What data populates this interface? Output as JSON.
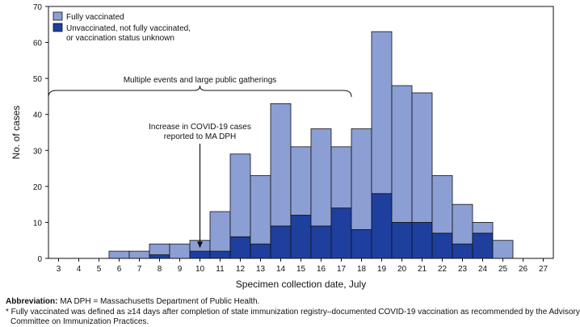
{
  "chart_data": {
    "type": "bar",
    "stacked": true,
    "xlabel": "Specimen collection date, July",
    "ylabel": "No. of cases",
    "categories": [
      "3",
      "4",
      "5",
      "6",
      "7",
      "8",
      "9",
      "10",
      "11",
      "12",
      "13",
      "14",
      "15",
      "16",
      "17",
      "18",
      "19",
      "20",
      "21",
      "22",
      "23",
      "24",
      "25",
      "26",
      "27"
    ],
    "ylim": [
      0,
      70
    ],
    "yticks": [
      0,
      10,
      20,
      30,
      40,
      50,
      60,
      70
    ],
    "grid": false,
    "legend_position": "top-left",
    "series": [
      {
        "name": "Unvaccinated, not fully vaccinated, or vaccination status unknown",
        "legend_lines": [
          "Unvaccinated, not fully vaccinated,",
          "or vaccination status unknown"
        ],
        "color": "#1e3f9e",
        "values": [
          0,
          0,
          0,
          0,
          0,
          1,
          0,
          2,
          2,
          6,
          4,
          9,
          12,
          9,
          14,
          8,
          18,
          10,
          10,
          7,
          4,
          7,
          0,
          0,
          0
        ]
      },
      {
        "name": "Fully vaccinated",
        "legend_lines": [
          "Fully vaccinated"
        ],
        "color": "#8c9fd4",
        "values": [
          0,
          0,
          0,
          2,
          2,
          3,
          4,
          3,
          11,
          23,
          19,
          34,
          19,
          27,
          17,
          28,
          45,
          38,
          36,
          16,
          11,
          3,
          5,
          0,
          0
        ]
      }
    ],
    "annotations": [
      {
        "text": "Multiple events and large public gatherings",
        "type": "bracket",
        "x_start": 2.5,
        "x_end": 17.5
      },
      {
        "text_lines": [
          "Increase in COVID-19 cases",
          "reported to MA DPH"
        ],
        "type": "arrow",
        "x": 10,
        "y": 2
      }
    ]
  },
  "footnotes": {
    "abbrev_label": "Abbreviation:",
    "abbrev_text": " MA DPH = Massachusetts Department of Public Health.",
    "note_line1": "* Fully vaccinated was defined as ≥14 days after completion of state immunization registry–documented COVID-19 vaccination as recommended by the Advisory",
    "note_line2": "Committee on Immunization Practices."
  }
}
